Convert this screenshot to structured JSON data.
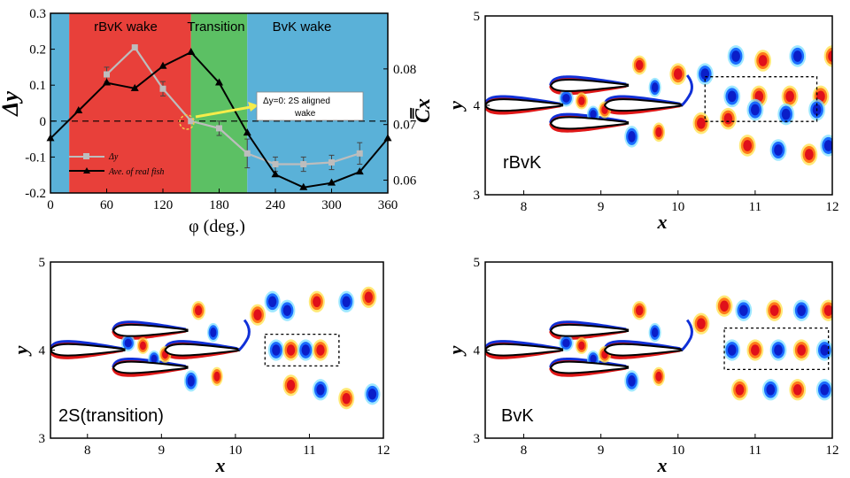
{
  "chart_data": [
    {
      "type": "line",
      "xlabel": "φ (deg.)",
      "ylabel": "Δy",
      "y2label": "C̿x",
      "xlim": [
        0,
        360
      ],
      "ylim": [
        -0.2,
        0.3
      ],
      "y2lim": [
        0.0577,
        0.09
      ],
      "xticks": [
        "0",
        "60",
        "120",
        "180",
        "240",
        "300",
        "360"
      ],
      "yticks": [
        "-0.2",
        "-0.1",
        "0",
        "0.1",
        "0.2",
        "0.3"
      ],
      "y2ticks": [
        "0.06",
        "0.07",
        "0.08"
      ],
      "regions": [
        {
          "label": "rBvK wake",
          "from": 20,
          "to": 150,
          "color": "#e8403a"
        },
        {
          "label": "Transition",
          "from": 150,
          "to": 210,
          "color": "#5cc064"
        },
        {
          "label": "BvK wake",
          "from": 210,
          "to": 360,
          "color": "#5ab1d8"
        }
      ],
      "side_bands": [
        {
          "from": 0,
          "to": 20,
          "color": "#5ab1d8"
        }
      ],
      "series": [
        {
          "name": "Δy",
          "axis": "left",
          "color": "#bdbdbd",
          "x": [
            60,
            90,
            120,
            150,
            180,
            210,
            240,
            270,
            300,
            330
          ],
          "y": [
            0.13,
            0.205,
            0.09,
            0.0,
            -0.02,
            -0.09,
            -0.12,
            -0.12,
            -0.115,
            -0.09
          ],
          "err": [
            0.02,
            0.0,
            0.02,
            0.0,
            0.02,
            0.04,
            0.02,
            0.02,
            0.02,
            0.03
          ]
        },
        {
          "name": "Ave. of real fish",
          "axis": "right",
          "color": "#000000",
          "x": [
            0,
            30,
            60,
            90,
            120,
            150,
            180,
            210,
            240,
            270,
            300,
            330,
            360
          ],
          "y": [
            0.0675,
            0.0725,
            0.0775,
            0.0765,
            0.0805,
            0.083,
            0.0775,
            0.0685,
            0.061,
            0.0587,
            0.0595,
            0.0615,
            0.0675
          ]
        }
      ],
      "zero_line": 0,
      "annotation": "Δy=0: 2S aligned wake"
    },
    {
      "type": "heatmap",
      "xlabel": "x",
      "ylabel": "y",
      "xlim": [
        7.5,
        12
      ],
      "ylim": [
        3,
        5
      ],
      "xticks": [
        "8",
        "9",
        "10",
        "11",
        "12"
      ],
      "yticks": [
        "3",
        "4",
        "5"
      ],
      "label": "rBvK"
    },
    {
      "type": "heatmap",
      "xlabel": "x",
      "ylabel": "y",
      "xlim": [
        7.5,
        12
      ],
      "ylim": [
        3,
        5
      ],
      "xticks": [
        "8",
        "9",
        "10",
        "11",
        "12"
      ],
      "yticks": [
        "3",
        "4",
        "5"
      ],
      "label": "2S(transition)"
    },
    {
      "type": "heatmap",
      "xlabel": "x",
      "ylabel": "y",
      "xlim": [
        7.5,
        12
      ],
      "ylim": [
        3,
        5
      ],
      "xticks": [
        "8",
        "9",
        "10",
        "11",
        "12"
      ],
      "yticks": [
        "3",
        "4",
        "5"
      ],
      "label": "BvK"
    }
  ]
}
